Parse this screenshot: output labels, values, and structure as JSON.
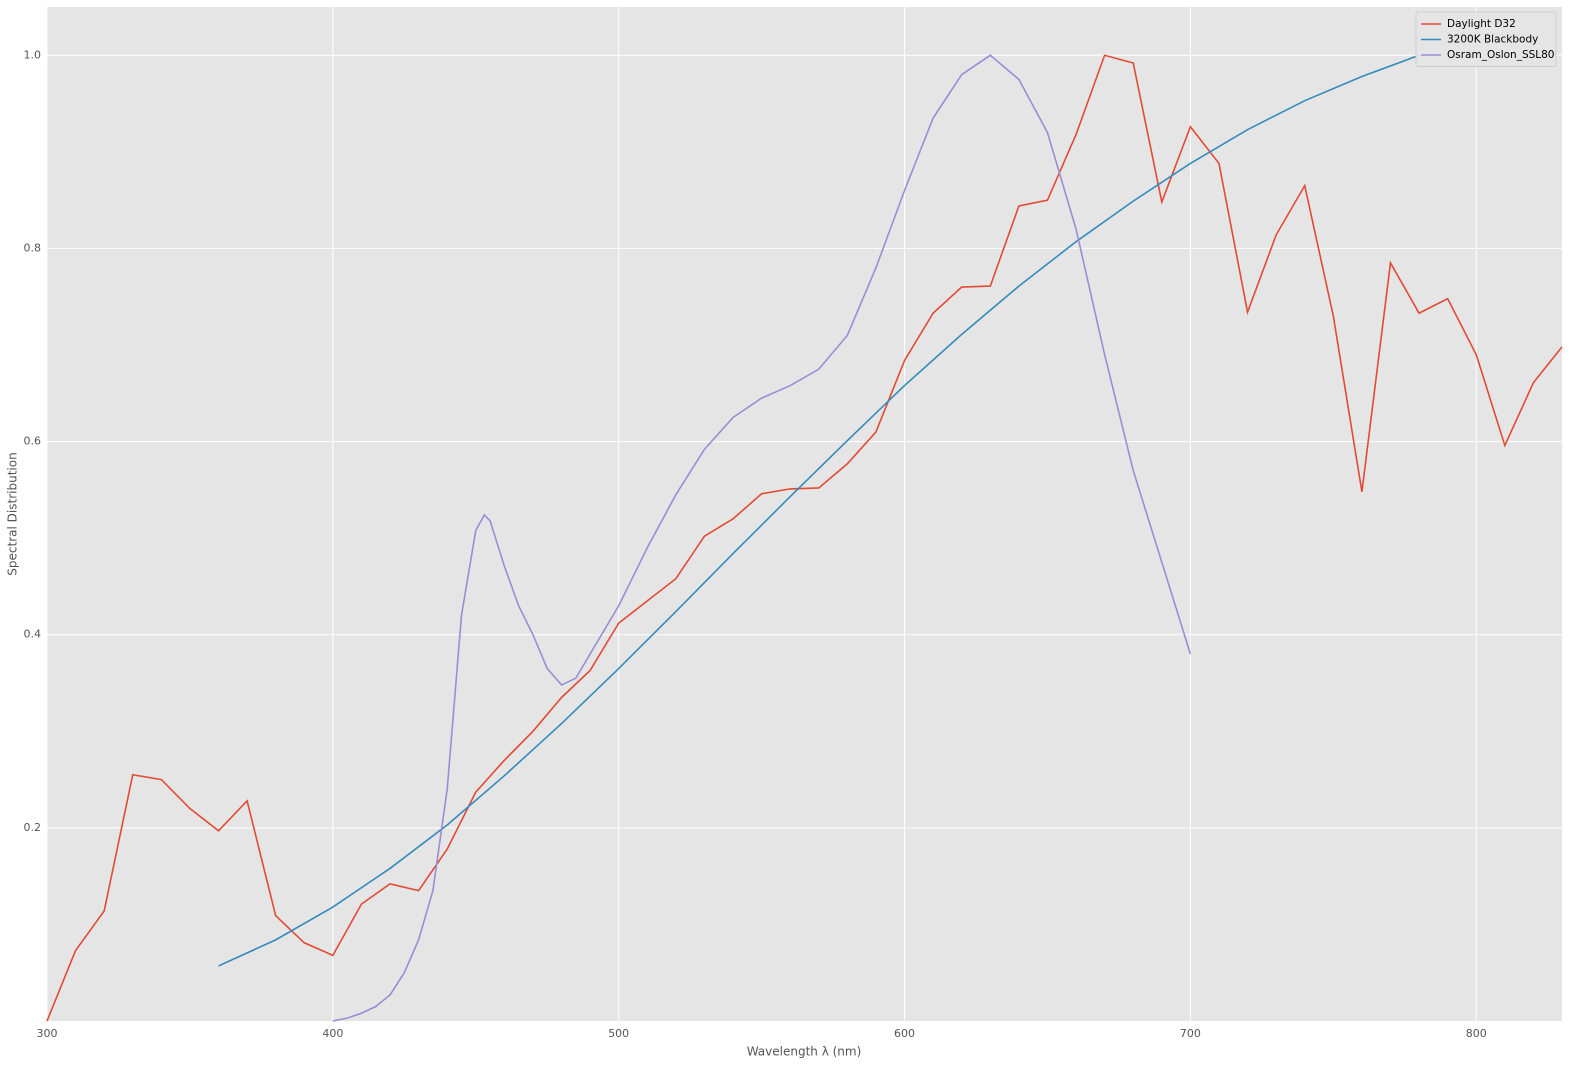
{
  "chart_data": {
    "type": "line",
    "xlabel": "Wavelength λ (nm)",
    "ylabel": "Spectral Distribution",
    "xlim": [
      300,
      830
    ],
    "ylim": [
      0,
      1.05
    ],
    "xticks": [
      300,
      400,
      500,
      600,
      700,
      800
    ],
    "yticks": [
      0.2,
      0.4,
      0.6,
      0.8,
      {
        "value": 1,
        "label": "1.0"
      }
    ],
    "grid": true,
    "legend": "upper right",
    "series": [
      {
        "name": "Daylight D32",
        "color": "#e24a33",
        "x": [
          300,
          310,
          320,
          330,
          340,
          350,
          360,
          370,
          380,
          390,
          400,
          410,
          420,
          430,
          440,
          450,
          460,
          470,
          480,
          490,
          500,
          510,
          520,
          530,
          540,
          550,
          560,
          570,
          580,
          590,
          600,
          610,
          620,
          630,
          640,
          650,
          660,
          670,
          680,
          690,
          700,
          710,
          720,
          730,
          740,
          750,
          760,
          770,
          780,
          790,
          800,
          810,
          820,
          830
        ],
        "values": [
          0.0,
          0.073,
          0.114,
          0.255,
          0.25,
          0.22,
          0.197,
          0.228,
          0.109,
          0.081,
          0.068,
          0.121,
          0.142,
          0.135,
          0.178,
          0.237,
          0.27,
          0.3,
          0.335,
          0.363,
          0.412,
          0.435,
          0.458,
          0.502,
          0.52,
          0.546,
          0.551,
          0.552,
          0.577,
          0.61,
          0.684,
          0.733,
          0.76,
          0.761,
          0.844,
          0.85,
          0.918,
          1.0,
          0.992,
          0.848,
          0.926,
          0.888,
          0.734,
          0.814,
          0.865,
          0.73,
          0.548,
          0.785,
          0.733,
          0.748,
          0.69,
          0.596,
          0.661,
          0.698
        ]
      },
      {
        "name": "3200K Blackbody",
        "color": "#348abd",
        "x": [
          360,
          380,
          400,
          420,
          440,
          460,
          480,
          500,
          520,
          540,
          560,
          580,
          600,
          620,
          640,
          660,
          680,
          700,
          720,
          740,
          760,
          780
        ],
        "values": [
          0.057,
          0.084,
          0.118,
          0.158,
          0.203,
          0.254,
          0.308,
          0.365,
          0.424,
          0.484,
          0.543,
          0.601,
          0.658,
          0.711,
          0.761,
          0.807,
          0.849,
          0.888,
          0.923,
          0.953,
          0.978,
          1.0
        ]
      },
      {
        "name": "Osram_Oslon_SSL80",
        "color": "#988ed5",
        "x": [
          400,
          405,
          410,
          415,
          420,
          425,
          430,
          435,
          440,
          445,
          450,
          453,
          455,
          460,
          465,
          470,
          475,
          480,
          485,
          490,
          500,
          510,
          520,
          530,
          540,
          550,
          560,
          570,
          580,
          590,
          600,
          610,
          620,
          630,
          640,
          650,
          660,
          670,
          680,
          690,
          700
        ],
        "values": [
          0.0,
          0.003,
          0.008,
          0.015,
          0.027,
          0.05,
          0.084,
          0.135,
          0.24,
          0.42,
          0.508,
          0.524,
          0.518,
          0.471,
          0.43,
          0.4,
          0.365,
          0.348,
          0.355,
          0.38,
          0.43,
          0.49,
          0.545,
          0.592,
          0.625,
          0.645,
          0.658,
          0.675,
          0.71,
          0.78,
          0.86,
          0.935,
          0.98,
          1.0,
          0.975,
          0.92,
          0.82,
          0.69,
          0.57,
          0.475,
          0.38
        ]
      }
    ]
  }
}
